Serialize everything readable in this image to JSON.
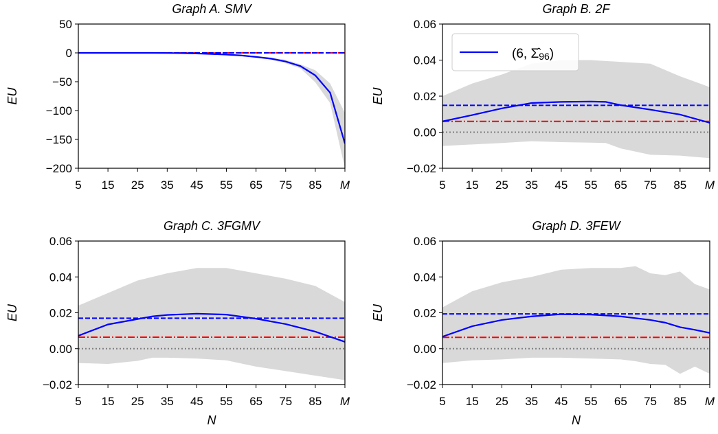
{
  "chart_data": [
    {
      "type": "line",
      "title": "Graph A. SMV",
      "ylabel": "EU",
      "xlabel": "",
      "ylim": [
        -200,
        50
      ],
      "yticks": [
        "50",
        "0",
        "−50",
        "−100",
        "−150",
        "−200"
      ],
      "ytick_values": [
        50,
        0,
        -50,
        -100,
        -150,
        -200
      ],
      "xtick_labels": [
        "5",
        "15",
        "25",
        "35",
        "45",
        "55",
        "65",
        "75",
        "85",
        "M"
      ],
      "x": [
        5,
        10,
        15,
        20,
        25,
        30,
        35,
        40,
        45,
        50,
        55,
        60,
        65,
        70,
        75,
        80,
        85,
        90,
        95
      ],
      "series": [
        {
          "name": "(6, Σ̂ 96)",
          "values": [
            0,
            0,
            0,
            0,
            0,
            0,
            -0.2,
            -0.5,
            -1,
            -2,
            -3,
            -4.5,
            -7,
            -10,
            -15,
            -23,
            -39,
            -69,
            -157
          ]
        }
      ],
      "band_upper": [
        0,
        0,
        0,
        0,
        0,
        0,
        0,
        0,
        -0.5,
        -1.5,
        -2.5,
        -3.5,
        -5.5,
        -8,
        -12,
        -20,
        -30,
        -53,
        -104
      ],
      "band_lower": [
        0,
        0,
        0,
        0,
        0,
        0,
        -0.5,
        -1,
        -1.5,
        -2.5,
        -3.5,
        -5.5,
        -8.5,
        -12,
        -18,
        -27,
        -51,
        -87,
        -200
      ],
      "hline_blue_dashed": 0,
      "hline_red_dashdot": 0,
      "hline_grey_dotted": 0
    },
    {
      "type": "line",
      "title": "Graph B. 2F",
      "ylabel": "EU",
      "xlabel": "",
      "ylim": [
        -0.02,
        0.06
      ],
      "yticks": [
        "0.06",
        "0.04",
        "0.02",
        "0.00",
        "−0.02"
      ],
      "ytick_values": [
        0.06,
        0.04,
        0.02,
        0,
        -0.02
      ],
      "xtick_labels": [
        "5",
        "15",
        "25",
        "35",
        "45",
        "55",
        "65",
        "75",
        "85",
        "M"
      ],
      "x": [
        5,
        15,
        25,
        35,
        45,
        55,
        60,
        65,
        75,
        85,
        95
      ],
      "series": [
        {
          "name": "(6, Σ̂ 96)",
          "values": [
            0.006,
            0.0095,
            0.0132,
            0.0162,
            0.0168,
            0.017,
            0.0168,
            0.015,
            0.0125,
            0.0098,
            0.0052
          ]
        }
      ],
      "band_upper": [
        0.02,
        0.027,
        0.032,
        0.038,
        0.04,
        0.04,
        0.0395,
        0.039,
        0.038,
        0.031,
        0.025
      ],
      "band_lower": [
        -0.0076,
        -0.0068,
        -0.006,
        -0.005,
        -0.0055,
        -0.0058,
        -0.006,
        -0.009,
        -0.0125,
        -0.013,
        -0.0144
      ],
      "hline_blue_dashed": 0.0149,
      "hline_red_dashdot": 0.006,
      "hline_grey_dotted": 0,
      "legend": {
        "position": "top-left",
        "label_main": "(6, ",
        "label_sigma": "Σ̂",
        "label_sub": "96",
        "label_close": ")"
      }
    },
    {
      "type": "line",
      "title": "Graph C. 3FGMV",
      "ylabel": "EU",
      "xlabel": "N",
      "ylim": [
        -0.02,
        0.06
      ],
      "yticks": [
        "0.06",
        "0.04",
        "0.02",
        "0.00",
        "−0.02"
      ],
      "ytick_values": [
        0.06,
        0.04,
        0.02,
        0,
        -0.02
      ],
      "xtick_labels": [
        "5",
        "15",
        "25",
        "35",
        "45",
        "55",
        "65",
        "75",
        "85",
        "M"
      ],
      "x": [
        5,
        15,
        25,
        30,
        35,
        45,
        55,
        65,
        75,
        85,
        95
      ],
      "series": [
        {
          "values": [
            0.0072,
            0.0135,
            0.0165,
            0.018,
            0.0188,
            0.0195,
            0.019,
            0.0167,
            0.0137,
            0.0095,
            0.0038
          ]
        }
      ],
      "band_upper": [
        0.024,
        0.031,
        0.038,
        0.04,
        0.042,
        0.045,
        0.045,
        0.042,
        0.039,
        0.035,
        0.026
      ],
      "band_lower": [
        -0.008,
        -0.0085,
        -0.0068,
        -0.005,
        -0.005,
        -0.0055,
        -0.0065,
        -0.01,
        -0.0125,
        -0.015,
        -0.0175
      ],
      "hline_blue_dashed": 0.017,
      "hline_red_dashdot": 0.0064,
      "hline_grey_dotted": 0
    },
    {
      "type": "line",
      "title": "Graph D. 3FEW",
      "ylabel": "EU",
      "xlabel": "N",
      "ylim": [
        -0.02,
        0.06
      ],
      "yticks": [
        "0.06",
        "0.04",
        "0.02",
        "0.00",
        "−0.02"
      ],
      "ytick_values": [
        0.06,
        0.04,
        0.02,
        0,
        -0.02
      ],
      "xtick_labels": [
        "5",
        "15",
        "25",
        "35",
        "45",
        "55",
        "65",
        "75",
        "85",
        "M"
      ],
      "x": [
        5,
        15,
        25,
        35,
        45,
        55,
        65,
        70,
        75,
        80,
        85,
        90,
        95
      ],
      "series": [
        {
          "values": [
            0.0067,
            0.0125,
            0.016,
            0.018,
            0.0192,
            0.019,
            0.018,
            0.017,
            0.016,
            0.0145,
            0.012,
            0.0105,
            0.0088
          ]
        }
      ],
      "band_upper": [
        0.023,
        0.032,
        0.037,
        0.04,
        0.044,
        0.045,
        0.045,
        0.046,
        0.042,
        0.041,
        0.043,
        0.036,
        0.033
      ],
      "band_lower": [
        -0.008,
        -0.0065,
        -0.006,
        -0.005,
        -0.005,
        -0.0055,
        -0.006,
        -0.007,
        -0.0085,
        -0.009,
        -0.014,
        -0.01,
        -0.014
      ],
      "hline_blue_dashed": 0.0194,
      "hline_red_dashdot": 0.0063,
      "hline_grey_dotted": 0
    }
  ],
  "colors": {
    "series": "#0000ff",
    "red_line": "#ff0000",
    "band": "#d9d9d9",
    "zero_line": "#808080"
  }
}
